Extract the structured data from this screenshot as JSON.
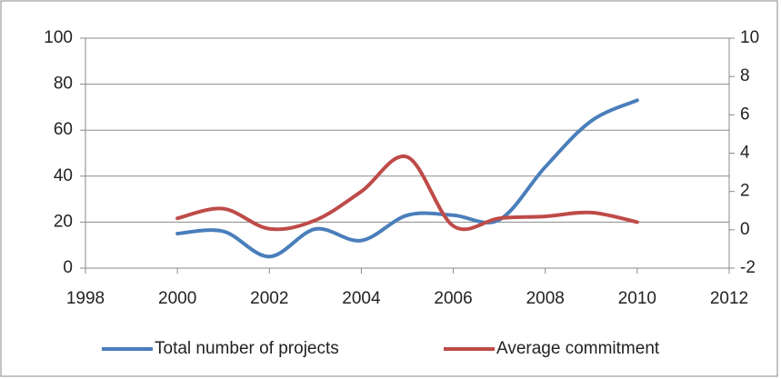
{
  "chart_data": {
    "type": "line",
    "x": [
      2000,
      2001,
      2002,
      2003,
      2004,
      2005,
      2006,
      2007,
      2008,
      2009,
      2010
    ],
    "xlim": [
      1998,
      2012
    ],
    "xticks": [
      1998,
      2000,
      2002,
      2004,
      2006,
      2008,
      2010,
      2012
    ],
    "ylim": [
      0,
      100
    ],
    "yticks": [
      0,
      20,
      40,
      60,
      80,
      100
    ],
    "y2lim": [
      -2,
      10
    ],
    "y2ticks": [
      -2,
      0,
      2,
      4,
      6,
      8,
      10
    ],
    "grid": true,
    "legend": "bottom",
    "smooth": true,
    "series": [
      {
        "name": "Total number of projects",
        "color": "#4a7ebb",
        "values": [
          15,
          16,
          5,
          17,
          12,
          23,
          23,
          21,
          44,
          64,
          73
        ]
      },
      {
        "name": "Average commitment",
        "color": "#be4b48",
        "axis": "y2",
        "values": [
          0.6,
          1.1,
          0.05,
          0.5,
          2.0,
          3.8,
          0.2,
          0.6,
          0.7,
          0.9,
          0.4
        ]
      }
    ]
  }
}
